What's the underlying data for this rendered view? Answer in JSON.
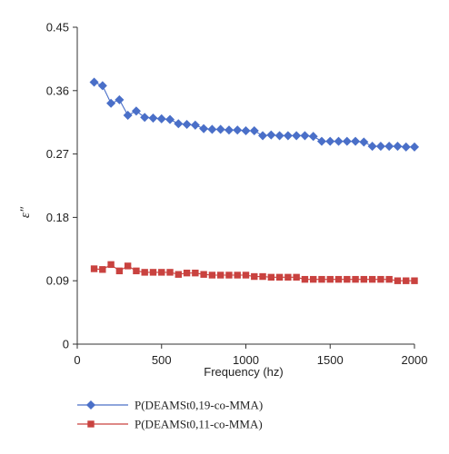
{
  "chart_data": {
    "type": "line",
    "title": "",
    "xlabel": "Frequency (hz)",
    "ylabel": "ε″",
    "xlim": [
      0,
      2000
    ],
    "ylim": [
      0,
      0.45
    ],
    "x_ticks": [
      "0",
      "500",
      "1000",
      "1500",
      "2000"
    ],
    "y_ticks": [
      "0",
      "0.09",
      "0.18",
      "0.27",
      "0.36",
      "0.45"
    ],
    "grid": false,
    "legend_position": "bottom-left",
    "series": [
      {
        "name": "P(DEAMSt0,19-co-MMA)",
        "color": "#4a6fc8",
        "marker": "diamond",
        "points": [
          [
            100,
            0.372
          ],
          [
            150,
            0.367
          ],
          [
            200,
            0.342
          ],
          [
            250,
            0.347
          ],
          [
            300,
            0.325
          ],
          [
            350,
            0.331
          ],
          [
            400,
            0.322
          ],
          [
            450,
            0.321
          ],
          [
            500,
            0.32
          ],
          [
            550,
            0.319
          ],
          [
            600,
            0.313
          ],
          [
            650,
            0.312
          ],
          [
            700,
            0.311
          ],
          [
            750,
            0.306
          ],
          [
            800,
            0.305
          ],
          [
            850,
            0.305
          ],
          [
            900,
            0.304
          ],
          [
            950,
            0.304
          ],
          [
            1000,
            0.303
          ],
          [
            1050,
            0.303
          ],
          [
            1100,
            0.296
          ],
          [
            1150,
            0.297
          ],
          [
            1200,
            0.296
          ],
          [
            1250,
            0.296
          ],
          [
            1300,
            0.296
          ],
          [
            1350,
            0.296
          ],
          [
            1400,
            0.295
          ],
          [
            1450,
            0.288
          ],
          [
            1500,
            0.288
          ],
          [
            1550,
            0.288
          ],
          [
            1600,
            0.288
          ],
          [
            1650,
            0.288
          ],
          [
            1700,
            0.287
          ],
          [
            1750,
            0.281
          ],
          [
            1800,
            0.281
          ],
          [
            1850,
            0.281
          ],
          [
            1900,
            0.281
          ],
          [
            1950,
            0.28
          ],
          [
            2000,
            0.28
          ]
        ]
      },
      {
        "name": "P(DEAMSt0,11-co-MMA)",
        "color": "#c9423f",
        "marker": "square",
        "points": [
          [
            100,
            0.107
          ],
          [
            150,
            0.106
          ],
          [
            200,
            0.113
          ],
          [
            250,
            0.104
          ],
          [
            300,
            0.111
          ],
          [
            350,
            0.104
          ],
          [
            400,
            0.102
          ],
          [
            450,
            0.102
          ],
          [
            500,
            0.102
          ],
          [
            550,
            0.102
          ],
          [
            600,
            0.099
          ],
          [
            650,
            0.101
          ],
          [
            700,
            0.101
          ],
          [
            750,
            0.099
          ],
          [
            800,
            0.098
          ],
          [
            850,
            0.098
          ],
          [
            900,
            0.098
          ],
          [
            950,
            0.098
          ],
          [
            1000,
            0.098
          ],
          [
            1050,
            0.096
          ],
          [
            1100,
            0.096
          ],
          [
            1150,
            0.095
          ],
          [
            1200,
            0.095
          ],
          [
            1250,
            0.095
          ],
          [
            1300,
            0.095
          ],
          [
            1350,
            0.092
          ],
          [
            1400,
            0.092
          ],
          [
            1450,
            0.092
          ],
          [
            1500,
            0.092
          ],
          [
            1550,
            0.092
          ],
          [
            1600,
            0.092
          ],
          [
            1650,
            0.092
          ],
          [
            1700,
            0.092
          ],
          [
            1750,
            0.092
          ],
          [
            1800,
            0.092
          ],
          [
            1850,
            0.092
          ],
          [
            1900,
            0.09
          ],
          [
            1950,
            0.09
          ],
          [
            2000,
            0.09
          ]
        ]
      }
    ]
  }
}
